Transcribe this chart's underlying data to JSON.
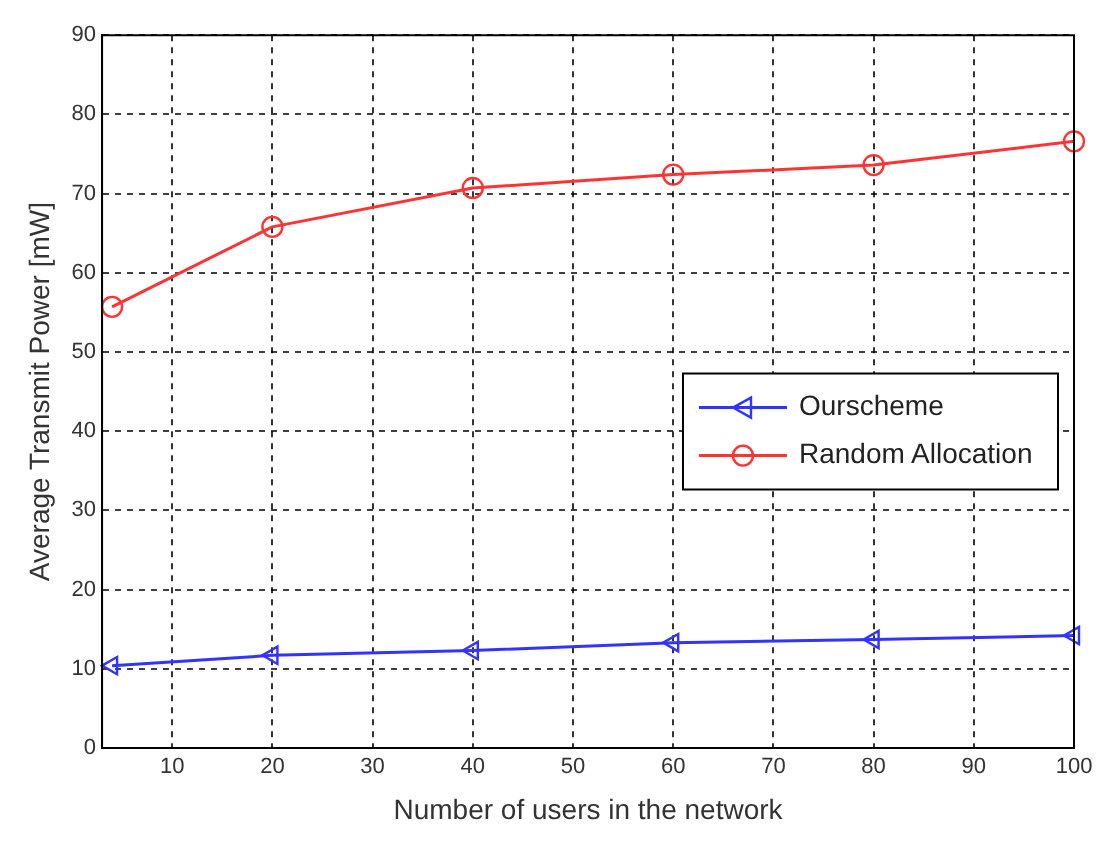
{
  "chart_data": {
    "type": "line",
    "xlabel": "Number of users in the network",
    "ylabel": "Average Transmit Power [mW]",
    "x": [
      4,
      20,
      40,
      60,
      80,
      100
    ],
    "series": [
      {
        "name": "Ourscheme",
        "color": "#3333ff",
        "values": [
          10.4,
          11.7,
          12.3,
          13.3,
          13.7,
          14.2
        ],
        "marker": "triangle"
      },
      {
        "name": "Random Allocation",
        "color": "#ff3333",
        "values": [
          55.7,
          65.8,
          70.7,
          72.4,
          73.6,
          76.6
        ],
        "marker": "circle"
      }
    ],
    "xlim": [
      3,
      100
    ],
    "xticks": [
      10,
      20,
      30,
      40,
      50,
      60,
      70,
      80,
      90,
      100
    ],
    "ylim": [
      0,
      90
    ],
    "yticks": [
      0,
      10,
      20,
      30,
      40,
      50,
      60,
      70,
      80,
      90
    ],
    "grid": true,
    "legend": "right",
    "line_style": "solid"
  }
}
